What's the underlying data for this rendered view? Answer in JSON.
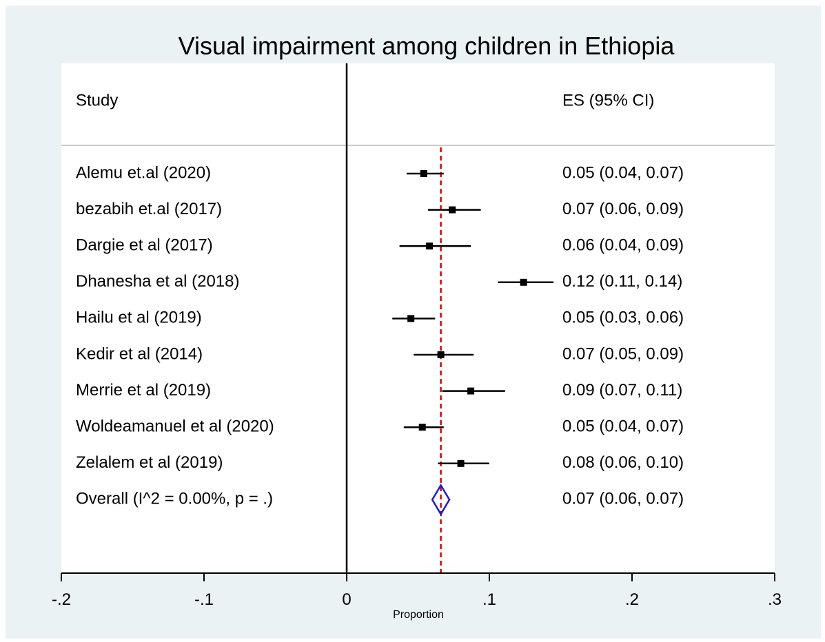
{
  "chart_data": {
    "type": "forest",
    "title": "Visual impairment among children in Ethiopia",
    "column_headers": {
      "study": "Study",
      "effect": "ES (95% CI)"
    },
    "xlabel": "Proportion",
    "xlim": [
      -0.2,
      0.3
    ],
    "xticks": [
      -0.2,
      -0.1,
      0,
      0.1,
      0.2,
      0.3
    ],
    "xtick_labels": [
      "-.2",
      "-.1",
      "0",
      ".1",
      ".2",
      ".3"
    ],
    "null_line": 0,
    "overall_line": 0.066,
    "studies": [
      {
        "label": "Alemu et.al (2020)",
        "es": 0.054,
        "lo": 0.042,
        "hi": 0.068,
        "es_text": "0.05 (0.04, 0.07)"
      },
      {
        "label": "bezabih et.al (2017)",
        "es": 0.074,
        "lo": 0.057,
        "hi": 0.094,
        "es_text": "0.07 (0.06, 0.09)"
      },
      {
        "label": "Dargie et al  (2017)",
        "es": 0.058,
        "lo": 0.037,
        "hi": 0.087,
        "es_text": "0.06 (0.04, 0.09)"
      },
      {
        "label": "Dhanesha et al  (2018)",
        "es": 0.124,
        "lo": 0.106,
        "hi": 0.145,
        "es_text": "0.12 (0.11, 0.14)"
      },
      {
        "label": "Hailu et al   (2019)",
        "es": 0.045,
        "lo": 0.032,
        "hi": 0.062,
        "es_text": "0.05 (0.03, 0.06)"
      },
      {
        "label": "Kedir et al  (2014)",
        "es": 0.066,
        "lo": 0.047,
        "hi": 0.089,
        "es_text": "0.07 (0.05, 0.09)"
      },
      {
        "label": "Merrie et al (2019)",
        "es": 0.087,
        "lo": 0.067,
        "hi": 0.111,
        "es_text": "0.09 (0.07, 0.11)"
      },
      {
        "label": "Woldeamanuel et al (2020)",
        "es": 0.053,
        "lo": 0.04,
        "hi": 0.068,
        "es_text": "0.05 (0.04, 0.07)"
      },
      {
        "label": "Zelalem et al  (2019)",
        "es": 0.08,
        "lo": 0.064,
        "hi": 0.1,
        "es_text": "0.08 (0.06, 0.10)"
      }
    ],
    "overall": {
      "label": "Overall  (I^2 = 0.00%, p = .)",
      "es": 0.066,
      "lo": 0.06,
      "hi": 0.072,
      "es_text": "0.07 (0.06, 0.07)"
    },
    "colors": {
      "background": "#eaf2f3",
      "plot": "#ffffff",
      "marker": "#000000",
      "overall_line": "#e00000",
      "diamond": "#1a1adc"
    }
  }
}
